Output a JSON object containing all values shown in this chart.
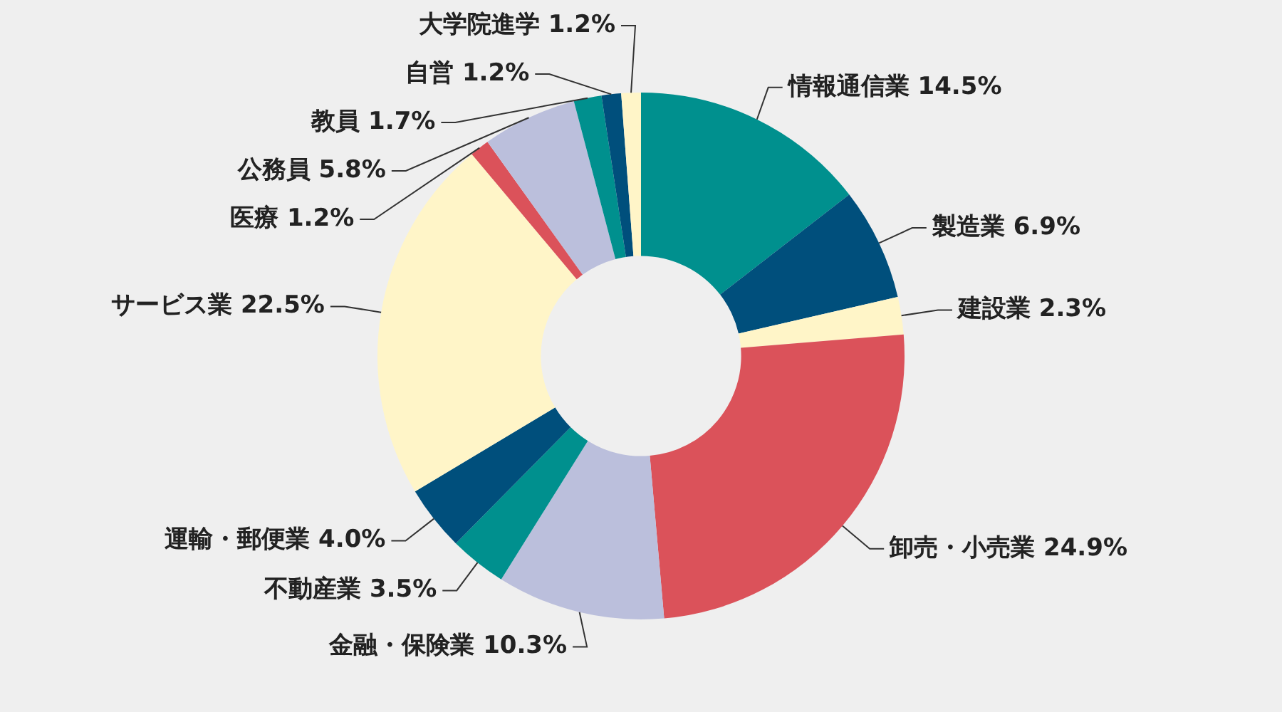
{
  "chart_data": {
    "type": "donut",
    "categories": [
      "情報通信業",
      "製造業",
      "建設業",
      "卸売・小売業",
      "金融・保険業",
      "不動産業",
      "運輸・郵便業",
      "サービス業",
      "医療",
      "公務員",
      "教員",
      "自営",
      "大学院進学"
    ],
    "values": [
      14.5,
      6.9,
      2.3,
      24.9,
      10.3,
      3.5,
      4.0,
      22.5,
      1.2,
      5.8,
      1.7,
      1.2,
      1.2
    ],
    "value_labels": [
      "14.5%",
      "6.9%",
      "2.3%",
      "24.9%",
      "10.3%",
      "3.5%",
      "4.0%",
      "22.5%",
      "1.2%",
      "5.8%",
      "1.7%",
      "1.2%",
      "1.2%"
    ],
    "colors": [
      "#00908e",
      "#004f7c",
      "#fff5c8",
      "#db525a",
      "#bbbfdc",
      "#00908e",
      "#004f7c",
      "#fff5c8",
      "#db525a",
      "#bbbfdc",
      "#00908e",
      "#004f7c",
      "#fff5c8"
    ],
    "legend": false
  }
}
